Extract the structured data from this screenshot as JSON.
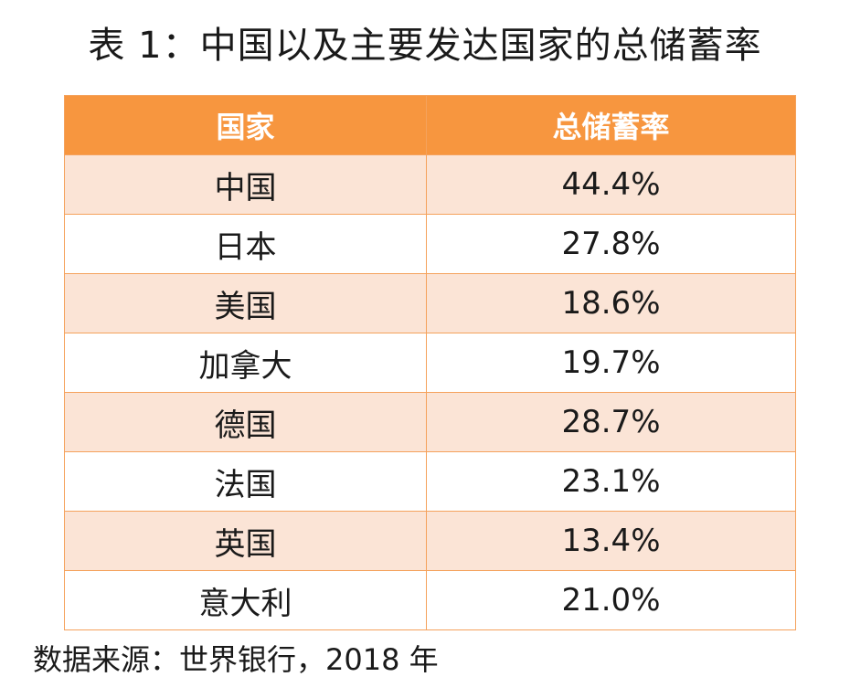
{
  "title": "表 1：中国以及主要发达国家的总储蓄率",
  "table": {
    "headers": [
      "国家",
      "总储蓄率"
    ],
    "rows": [
      {
        "country": "中国",
        "rate": "44.4%"
      },
      {
        "country": "日本",
        "rate": "27.8%"
      },
      {
        "country": "美国",
        "rate": "18.6%"
      },
      {
        "country": "加拿大",
        "rate": "19.7%"
      },
      {
        "country": "德国",
        "rate": "28.7%"
      },
      {
        "country": "法国",
        "rate": "23.1%"
      },
      {
        "country": "英国",
        "rate": "13.4%"
      },
      {
        "country": "意大利",
        "rate": "21.0%"
      }
    ]
  },
  "source": "数据来源：世界银行，2018 年",
  "colors": {
    "header_bg": "#f7963f",
    "header_text": "#ffffff",
    "row_stripe": "#fbe4d6",
    "border": "#f5a25c"
  }
}
